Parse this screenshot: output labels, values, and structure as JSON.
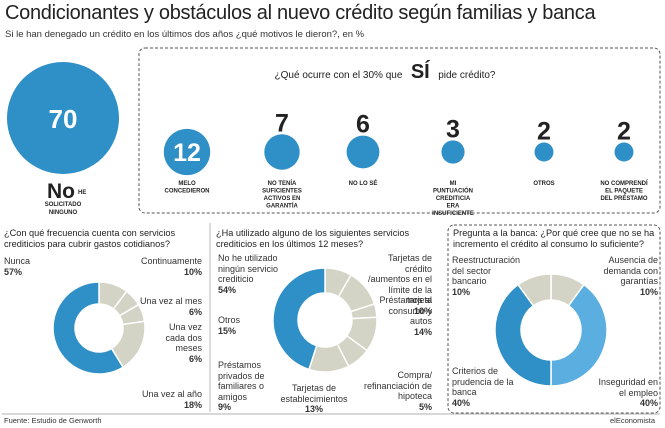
{
  "title": "Condicionantes y obstáculos al nuevo crédito según familias y banca",
  "subtitle": "Si le han denegado un crédito en los últimos dos años ¿qué motivos le dieron?, en %",
  "colors": {
    "blue": "#2f8fc7",
    "light_blue": "#5aaee0",
    "grey": "#d3d3c6",
    "dark_text": "#222222"
  },
  "chart_data": [
    {
      "type": "bubble",
      "name": "credit_request",
      "question_pre": "¿Qué ocurre con el 30% que",
      "question_em": "SÍ",
      "question_post": "pide crédito?",
      "main": {
        "value": 70,
        "label_big": "No",
        "label_small_1": "HE",
        "label_small_2": "SOLICITADO",
        "label_small_3": "NINGUNO"
      },
      "items": [
        {
          "value": 12,
          "label": "MELO CONCEDIERON"
        },
        {
          "value": 7,
          "label": "NO TENÍA SUFICIENTES ACTIVOS EN GARANTÍA"
        },
        {
          "value": 6,
          "label": "NO LO SÉ"
        },
        {
          "value": 3,
          "label": "MI PUNTUACIÓN CREDITICIA ERA INSUFICIENTE"
        },
        {
          "value": 2,
          "label": "OTROS"
        },
        {
          "value": 2,
          "label": "NO COMPRENDÍ EL PAQUETE DEL PRÉSTAMO"
        }
      ]
    },
    {
      "type": "pie",
      "name": "frequency",
      "question": "¿Con qué frecuencia cuenta con servicios crediticios para cubrir gastos cotidianos?",
      "slices": [
        {
          "label": "Continuamente",
          "value": 10
        },
        {
          "label": "Una vez al mes",
          "value": 6
        },
        {
          "label": "Una vez cada dos meses",
          "value": 6
        },
        {
          "label": "Una vez al año",
          "value": 18
        },
        {
          "label": "Nunca",
          "value": 57
        }
      ]
    },
    {
      "type": "pie",
      "name": "services_used",
      "question": "¿Ha utilizado alguno de los siguientes servicios crediticios en los últimos 12 meses?",
      "slices": [
        {
          "label": "Tarjetas de crédito /aumentos en el límite de la tarjeta",
          "value": 10
        },
        {
          "label": "Préstamos al consumo y autos",
          "value": 14
        },
        {
          "label": "Compra/ refinanciación de hipoteca",
          "value": 5
        },
        {
          "label": "Tarjetas de establecimientos",
          "value": 13
        },
        {
          "label": "Préstamos privados de familiares o amigos",
          "value": 9
        },
        {
          "label": "Otros",
          "value": 15
        },
        {
          "label": "No he utilizado ningún servicio crediticio",
          "value": 54
        }
      ]
    },
    {
      "type": "pie",
      "name": "bank_question",
      "question": "Pregunta a la banca: ¿Por qué cree que no se ha incremento el crédito al consumo lo suficiente?",
      "slices": [
        {
          "label": "Ausencia de demanda con garantías",
          "value": 10
        },
        {
          "label": "Inseguridad en el empleo",
          "value": 40
        },
        {
          "label": "Criterios de prudencia de la banca",
          "value": 40
        },
        {
          "label": "Reestructuración del sector bancario",
          "value": 10
        }
      ]
    }
  ],
  "footer": {
    "source": "Fuente: Estudio de Genworth",
    "credit": "elEconomista"
  }
}
